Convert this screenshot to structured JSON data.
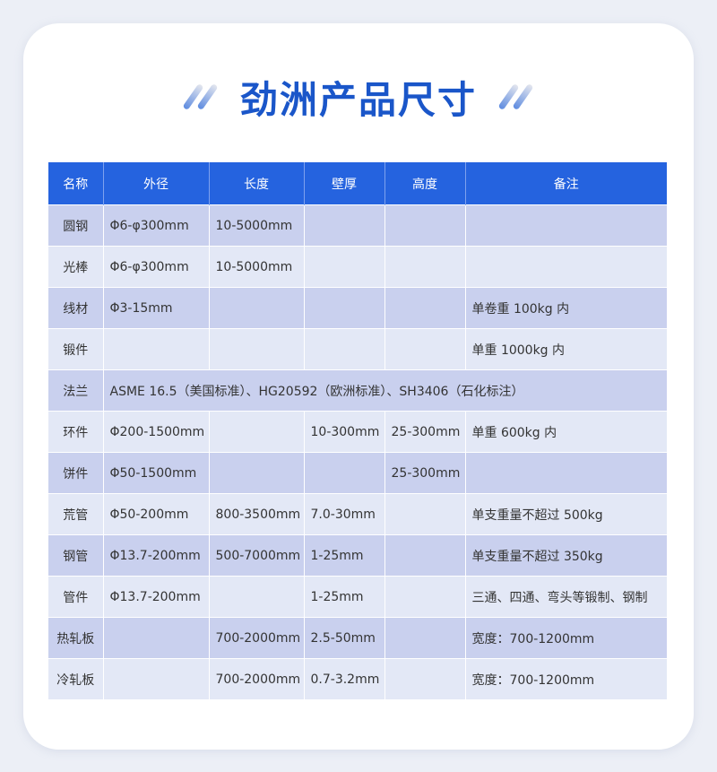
{
  "title": "劲洲产品尺寸",
  "colors": {
    "header": "#2563df",
    "row_dark": "#c9d0ee",
    "row_light": "#e3e8f6",
    "title": "#1a56c9"
  },
  "table": {
    "headers": [
      "名称",
      "外径",
      "长度",
      "壁厚",
      "高度",
      "备注"
    ],
    "rows": [
      {
        "name": "圆钢",
        "cells": [
          "Φ6-φ300mm",
          "10-5000mm",
          "",
          "",
          ""
        ]
      },
      {
        "name": "光棒",
        "cells": [
          "Φ6-φ300mm",
          "10-5000mm",
          "",
          "",
          ""
        ]
      },
      {
        "name": "线材",
        "cells": [
          "Φ3-15mm",
          "",
          "",
          "",
          "单卷重 100kg 内"
        ]
      },
      {
        "name": "锻件",
        "cells": [
          "",
          "",
          "",
          "",
          "单重 1000kg 内"
        ]
      },
      {
        "name": "法兰",
        "span": "ASME 16.5（美国标准）、HG20592（欧洲标准）、SH3406（石化标注）"
      },
      {
        "name": "环件",
        "cells": [
          "Φ200-1500mm",
          "",
          "10-300mm",
          "25-300mm",
          "单重 600kg 内"
        ]
      },
      {
        "name": "饼件",
        "cells": [
          "Φ50-1500mm",
          "",
          "",
          "25-300mm",
          ""
        ]
      },
      {
        "name": "荒管",
        "cells": [
          "Φ50-200mm",
          "800-3500mm",
          "7.0-30mm",
          "",
          "单支重量不超过 500kg"
        ]
      },
      {
        "name": "钢管",
        "cells": [
          "Φ13.7-200mm",
          "500-7000mm",
          "1-25mm",
          "",
          "单支重量不超过 350kg"
        ]
      },
      {
        "name": "管件",
        "cells": [
          "Φ13.7-200mm",
          "",
          "1-25mm",
          "",
          "三通、四通、弯头等锻制、钢制"
        ]
      },
      {
        "name": "热轧板",
        "cells": [
          "",
          "700-2000mm",
          "2.5-50mm",
          "",
          "宽度：700-1200mm"
        ]
      },
      {
        "name": "冷轧板",
        "cells": [
          "",
          "700-2000mm",
          "0.7-3.2mm",
          "",
          "宽度：700-1200mm"
        ]
      }
    ]
  }
}
